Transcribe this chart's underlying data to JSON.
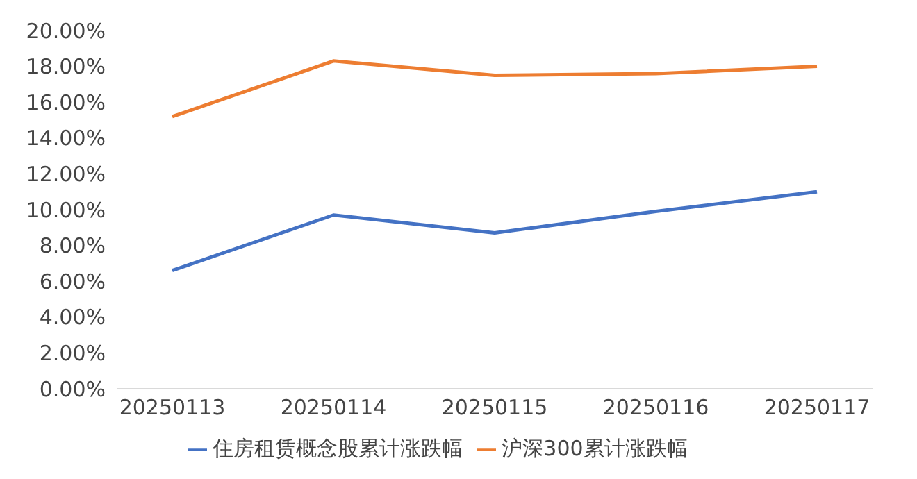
{
  "chart_data": {
    "type": "line",
    "categories": [
      "20250113",
      "20250114",
      "20250115",
      "20250116",
      "20250117"
    ],
    "series": [
      {
        "name": "住房租赁概念股累计涨跌幅",
        "color": "#4472c4",
        "values": [
          6.6,
          9.7,
          8.7,
          9.9,
          11.0
        ]
      },
      {
        "name": "沪深300累计涨跌幅",
        "color": "#ed7d31",
        "values": [
          15.2,
          18.3,
          17.5,
          17.6,
          18.0
        ]
      }
    ],
    "ylim": [
      0,
      20
    ],
    "yticks": [
      {
        "value": 0,
        "label": "0.00%"
      },
      {
        "value": 2,
        "label": "2.00%"
      },
      {
        "value": 4,
        "label": "4.00%"
      },
      {
        "value": 6,
        "label": "6.00%"
      },
      {
        "value": 8,
        "label": "8.00%"
      },
      {
        "value": 10,
        "label": "10.00%"
      },
      {
        "value": 12,
        "label": "12.00%"
      },
      {
        "value": 14,
        "label": "14.00%"
      },
      {
        "value": 16,
        "label": "16.00%"
      },
      {
        "value": 18,
        "label": "18.00%"
      },
      {
        "value": 20,
        "label": "20.00%"
      }
    ],
    "grid": false,
    "legend": "bottom",
    "marker": "none",
    "line_style": "solid"
  }
}
